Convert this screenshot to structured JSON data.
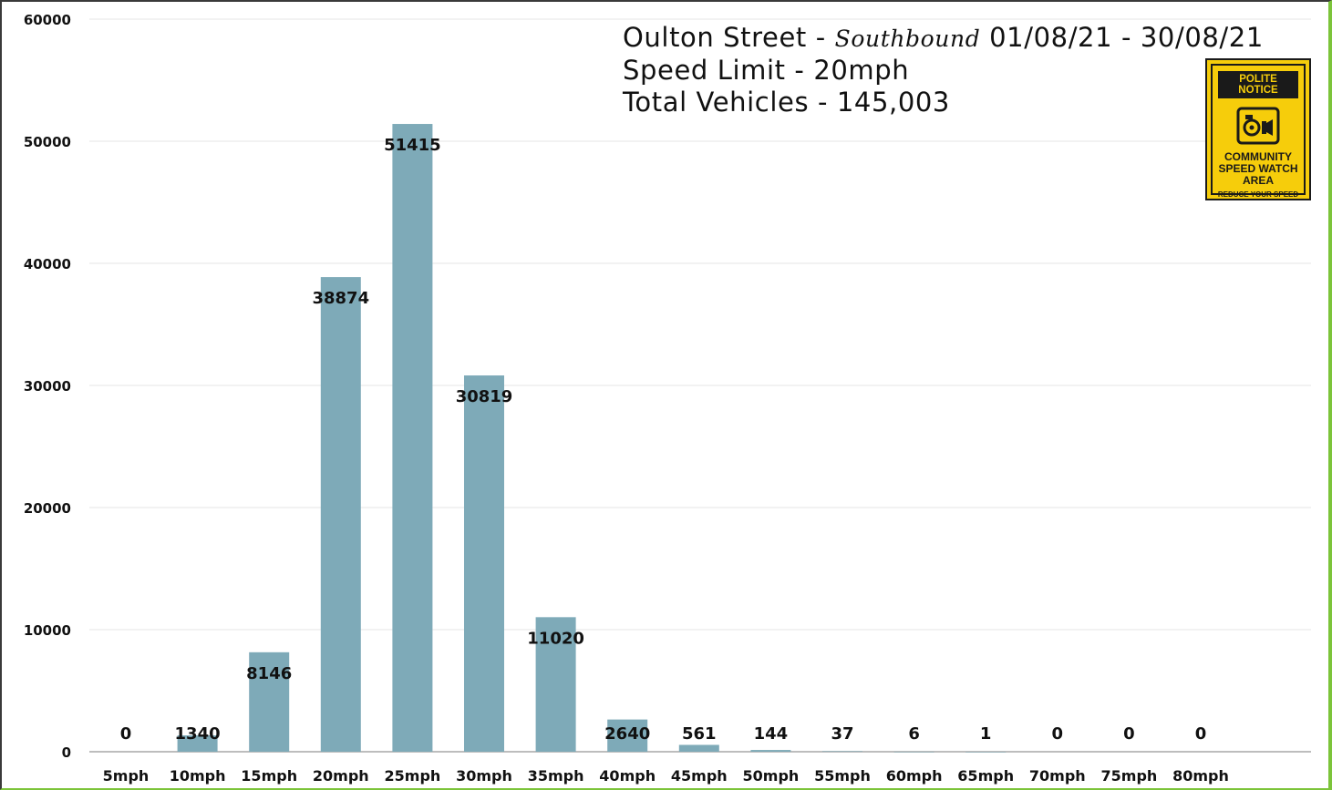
{
  "title": {
    "street": "Oulton Street - ",
    "direction": "Southbound",
    "dates": " 01/08/21 - 30/08/21",
    "speed_limit": "Speed Limit - 20mph",
    "total": "Total Vehicles - 145,003"
  },
  "sign": {
    "header": "POLITE NOTICE",
    "line1": "COMMUNITY",
    "line2": "SPEED WATCH",
    "line3": "AREA",
    "footer": "REDUCE YOUR SPEED",
    "icon": "speed-camera-icon",
    "color": "#f6cd0b"
  },
  "chart_data": {
    "type": "bar",
    "categories": [
      "5mph",
      "10mph",
      "15mph",
      "20mph",
      "25mph",
      "30mph",
      "35mph",
      "40mph",
      "45mph",
      "50mph",
      "55mph",
      "60mph",
      "65mph",
      "70mph",
      "75mph",
      "80mph"
    ],
    "values": [
      0,
      1340,
      8146,
      38874,
      51415,
      30819,
      11020,
      2640,
      561,
      144,
      37,
      6,
      1,
      0,
      0,
      0
    ],
    "yticks": [
      0,
      10000,
      20000,
      30000,
      40000,
      50000,
      60000
    ],
    "ylim": [
      0,
      60000
    ],
    "grid": true,
    "bar_color": "#7eaab8",
    "xlabel": "",
    "ylabel": ""
  }
}
